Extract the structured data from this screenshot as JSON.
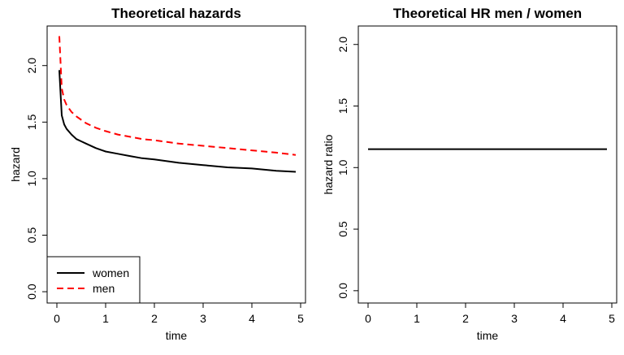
{
  "chart_data": [
    {
      "type": "line",
      "title": "Theoretical hazards",
      "xlabel": "time",
      "ylabel": "hazard",
      "xlim": [
        -0.2,
        5.1
      ],
      "ylim": [
        -0.1,
        2.35
      ],
      "xticks": [
        "0",
        "1",
        "2",
        "3",
        "4",
        "5"
      ],
      "xtick_values": [
        0,
        1,
        2,
        3,
        4,
        5
      ],
      "yticks": [
        "0.0",
        "0.5",
        "1.0",
        "1.5",
        "2.0"
      ],
      "ytick_values": [
        0,
        0.5,
        1.0,
        1.5,
        2.0
      ],
      "legend": "bottom-left",
      "grid": false,
      "series": [
        {
          "name": "women",
          "color": "#000000",
          "dash": "solid",
          "x": [
            0.05,
            0.1,
            0.15,
            0.2,
            0.3,
            0.4,
            0.5,
            0.6,
            0.8,
            1.0,
            1.25,
            1.5,
            1.75,
            2.0,
            2.5,
            3.0,
            3.5,
            4.0,
            4.5,
            4.9
          ],
          "y": [
            1.96,
            1.56,
            1.48,
            1.44,
            1.39,
            1.35,
            1.33,
            1.31,
            1.27,
            1.24,
            1.22,
            1.2,
            1.18,
            1.17,
            1.14,
            1.12,
            1.1,
            1.09,
            1.07,
            1.06
          ]
        },
        {
          "name": "men",
          "color": "#ff0000",
          "dash": "dashed",
          "x": [
            0.05,
            0.1,
            0.15,
            0.2,
            0.3,
            0.4,
            0.5,
            0.6,
            0.8,
            1.0,
            1.25,
            1.5,
            1.75,
            2.0,
            2.5,
            3.0,
            3.5,
            4.0,
            4.5,
            4.9
          ],
          "y": [
            2.26,
            1.8,
            1.7,
            1.65,
            1.59,
            1.55,
            1.52,
            1.49,
            1.45,
            1.42,
            1.39,
            1.37,
            1.35,
            1.34,
            1.31,
            1.29,
            1.27,
            1.25,
            1.23,
            1.21
          ]
        }
      ]
    },
    {
      "type": "line",
      "title": "Theoretical HR men / women",
      "xlabel": "time",
      "ylabel": "hazard ratio",
      "xlim": [
        -0.2,
        5.1
      ],
      "ylim": [
        -0.1,
        2.15
      ],
      "xticks": [
        "0",
        "1",
        "2",
        "3",
        "4",
        "5"
      ],
      "xtick_values": [
        0,
        1,
        2,
        3,
        4,
        5
      ],
      "yticks": [
        "0.0",
        "0.5",
        "1.0",
        "1.5",
        "2.0"
      ],
      "ytick_values": [
        0,
        0.5,
        1.0,
        1.5,
        2.0
      ],
      "grid": false,
      "series": [
        {
          "color": "#000000",
          "dash": "solid",
          "x": [
            0.0,
            4.9
          ],
          "y": [
            1.15,
            1.15
          ]
        }
      ]
    }
  ]
}
